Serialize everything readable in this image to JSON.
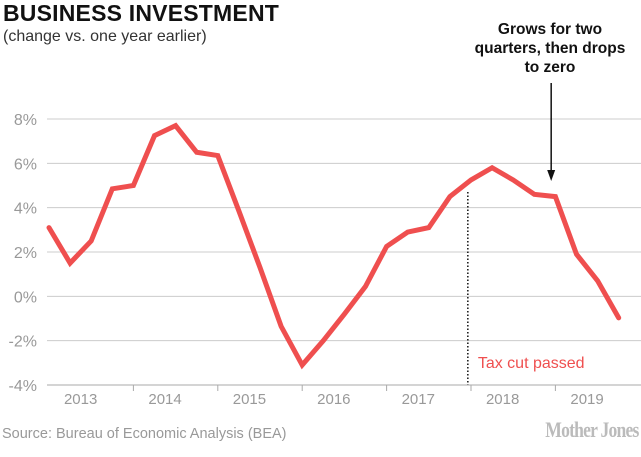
{
  "chart_data": {
    "type": "line",
    "title": "BUSINESS INVESTMENT",
    "subtitle": "(change vs. one year earlier)",
    "xlabel": "",
    "ylabel": "",
    "ylim": [
      -4,
      8
    ],
    "yticks": [
      8,
      6,
      4,
      2,
      0,
      -2,
      -4
    ],
    "ytick_labels": [
      "8%",
      "6%",
      "4%",
      "2%",
      "0%",
      "-2%",
      "-4%"
    ],
    "grid": true,
    "x_categories": [
      "2013",
      "2014",
      "2015",
      "2016",
      "2017",
      "2018",
      "2019"
    ],
    "series": [
      {
        "name": "Business investment",
        "color": "#ef4f4f",
        "x": [
          "2013Q1",
          "2013Q2",
          "2013Q3",
          "2013Q4",
          "2014Q1",
          "2014Q2",
          "2014Q3",
          "2014Q4",
          "2015Q1",
          "2015Q2",
          "2015Q3",
          "2015Q4",
          "2016Q1",
          "2016Q2",
          "2016Q3",
          "2016Q4",
          "2017Q1",
          "2017Q2",
          "2017Q3",
          "2017Q4",
          "2018Q1",
          "2018Q2",
          "2018Q3",
          "2018Q4",
          "2019Q1",
          "2019Q2",
          "2019Q3",
          "2019Q4"
        ],
        "values": [
          3.1,
          1.5,
          2.5,
          4.85,
          5.0,
          7.25,
          7.7,
          6.5,
          6.35,
          3.85,
          1.3,
          -1.35,
          -3.1,
          -2.0,
          -0.8,
          0.45,
          2.25,
          2.9,
          3.1,
          4.5,
          5.25,
          5.8,
          5.25,
          4.6,
          4.5,
          1.9,
          0.7,
          -0.97
        ]
      }
    ],
    "annotations": [
      {
        "text": "Tax cut passed",
        "x_index": 19.85,
        "style": "dotted-vertical",
        "color": "#ef4f4f"
      },
      {
        "text_lines": [
          "Grows for two",
          "quarters, then drops",
          "to zero"
        ],
        "x_index": 23.8,
        "style": "arrow"
      }
    ]
  },
  "source": "Source: Bureau of Economic Analysis (BEA)",
  "logo": "Mother Jones"
}
